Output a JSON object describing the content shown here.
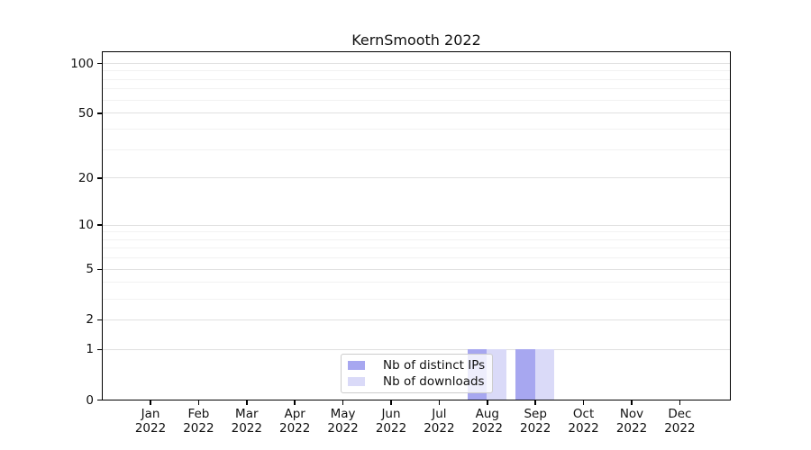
{
  "chart_data": {
    "type": "bar",
    "title": "KernSmooth 2022",
    "categories": [
      "Jan 2022",
      "Feb 2022",
      "Mar 2022",
      "Apr 2022",
      "May 2022",
      "Jun 2022",
      "Jul 2022",
      "Aug 2022",
      "Sep 2022",
      "Oct 2022",
      "Nov 2022",
      "Dec 2022"
    ],
    "category_months": [
      "Jan",
      "Feb",
      "Mar",
      "Apr",
      "May",
      "Jun",
      "Jul",
      "Aug",
      "Sep",
      "Oct",
      "Nov",
      "Dec"
    ],
    "category_year": "2022",
    "series": [
      {
        "name": "Nb of distinct IPs",
        "color": "#a7a7f0",
        "values": [
          0,
          0,
          0,
          0,
          0,
          0,
          0,
          1,
          1,
          0,
          0,
          0
        ]
      },
      {
        "name": "Nb of downloads",
        "color": "#dadaf8",
        "values": [
          0,
          0,
          0,
          0,
          0,
          0,
          0,
          1,
          1,
          0,
          0,
          0
        ]
      }
    ],
    "y_axis": {
      "scale": "log1p",
      "tick_values": [
        0,
        1,
        2,
        5,
        10,
        20,
        50,
        100
      ],
      "minor_gridline_values": [
        3,
        4,
        6,
        7,
        8,
        9,
        30,
        40,
        60,
        70,
        80,
        90
      ],
      "max_value": 116
    },
    "xlabel": "",
    "ylabel": "",
    "grid": true,
    "legend_position": "bottom-center"
  },
  "colors": {
    "major_grid": "#e0e0e0",
    "minor_grid": "#f2f2f2",
    "spine": "#000000",
    "tick_text": "#111111",
    "legend_border": "#cccccc"
  }
}
